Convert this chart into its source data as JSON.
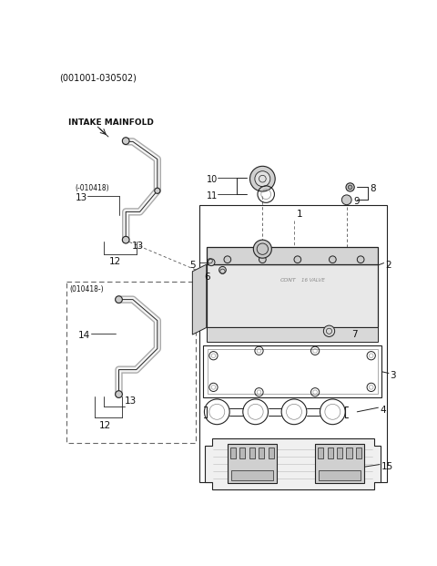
{
  "bg_color": "#ffffff",
  "fig_width": 4.8,
  "fig_height": 6.21,
  "dpi": 100,
  "header_text": "(001001-030502)",
  "intake_label": "INTAKE MAINFOLD",
  "line_color": "#222222",
  "gray_fill": "#e0e0e0",
  "light_fill": "#f0f0f0"
}
